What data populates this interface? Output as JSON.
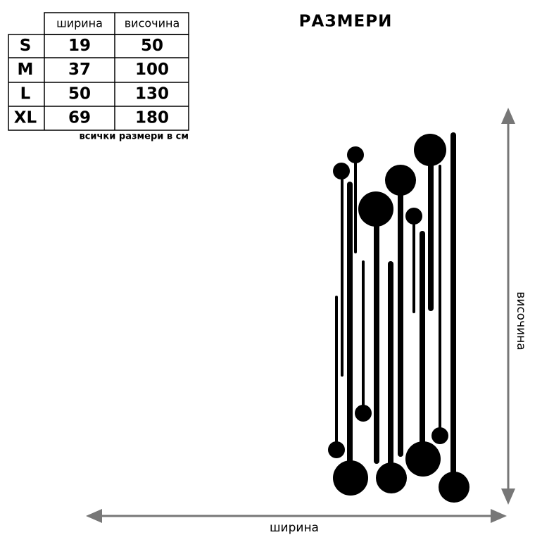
{
  "title": "РАЗМЕРИ",
  "table": {
    "header": [
      "ширина",
      "височина"
    ],
    "rows": [
      [
        "S",
        19,
        50
      ],
      [
        "M",
        37,
        100
      ],
      [
        "L",
        50,
        130
      ],
      [
        "XL",
        69,
        180
      ]
    ],
    "note": "всички размери в см"
  },
  "diagram": {
    "width_label": "ширина",
    "height_label": "височина"
  }
}
